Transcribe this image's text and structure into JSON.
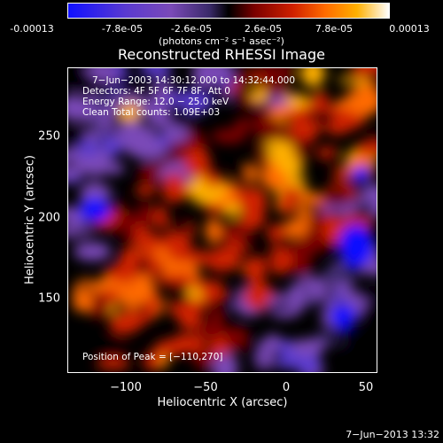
{
  "colorbar": {
    "ticks": [
      "-0.00013",
      "-7.8e-05",
      "-2.6e-05",
      "2.6e-05",
      "7.8e-05",
      "0.00013"
    ],
    "unit_label": "(photons cm⁻² s⁻¹ asec⁻²)",
    "range": [
      -0.00013,
      0.00013
    ]
  },
  "chart_data": {
    "type": "heatmap",
    "title": "Reconstructed RHESSI Image",
    "xlabel": "Heliocentric X (arcsec)",
    "ylabel": "Heliocentric Y (arcsec)",
    "xlim": [
      -140,
      55
    ],
    "ylim": [
      100,
      290
    ],
    "xticks": [
      "−100",
      "−50",
      "0",
      "50"
    ],
    "yticks": [
      "150",
      "200",
      "250"
    ],
    "annotations": {
      "time": "7−Jun−2003 14:30:12.000 to 14:32:44.000",
      "detectors": "Detectors: 4F 5F 6F 7F 8F, Att 0",
      "energy": "Energy Range: 12.0 − 25.0 keV",
      "clean": "Clean     Total counts: 1.09E+03",
      "peak": "Position of Peak = [−110,270]"
    },
    "colormap": [
      "#1010ff",
      "#5a3ad0",
      "#7a4ab8",
      "#3a2a6a",
      "#000000",
      "#7a0000",
      "#d02000",
      "#ff6a00",
      "#ffb000",
      "#ffffff"
    ]
  },
  "footer": "7−Jun−2013 13:32"
}
